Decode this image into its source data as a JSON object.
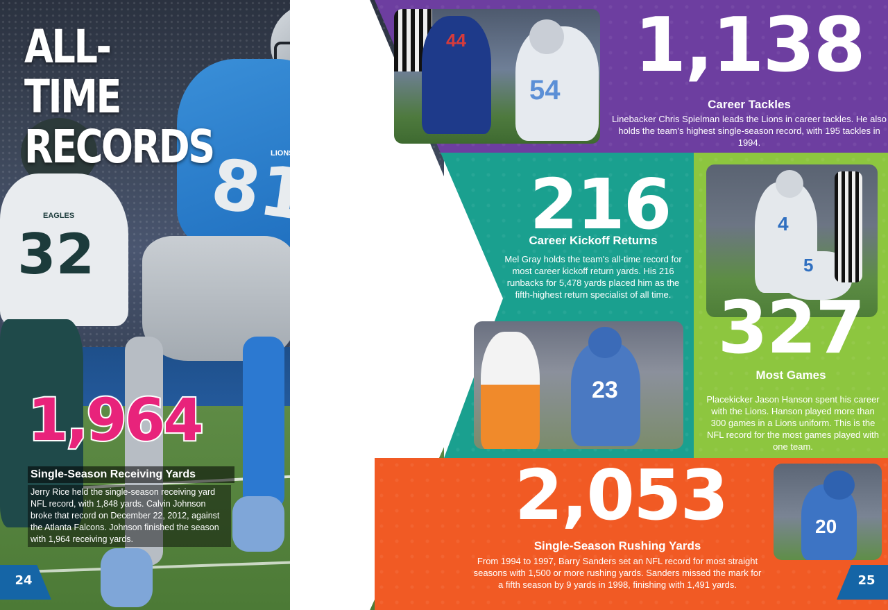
{
  "left_page": {
    "title_line1": "ALL-TIME",
    "title_line2": "RECORDS",
    "jersey_number": "81",
    "opponent_number": "32",
    "jersey_team_text": "LIONS",
    "opponent_team_text": "EAGLES",
    "stat": {
      "number": "1,964",
      "label": "Single-Season Receiving Yards",
      "body": "Jerry Rice held the single-season receiving yard NFL record, with 1,848 yards. Calvin Johnson broke that record on December 22, 2012, against the Atlanta Falcons. Johnson finished the season with 1,964 receiving yards."
    },
    "page_number": "24"
  },
  "right_page": {
    "tackles": {
      "number": "1,138",
      "label": "Career Tackles",
      "body": "Linebacker Chris Spielman leads the Lions in career tackles. He also holds the team's highest single-season record, with 195 tackles in 1994.",
      "photo_numbers": [
        "44",
        "54"
      ]
    },
    "kickoff": {
      "number": "216",
      "label": "Career Kickoff Returns",
      "body": "Mel Gray holds the team's all-time record for most career kickoff return yards. His 216 runbacks for 5,478 yards placed him as the fifth-highest return specialist of all time.",
      "photo_numbers": [
        "23"
      ]
    },
    "games": {
      "number": "327",
      "label": "Most Games",
      "body": "Placekicker Jason Hanson spent his career with the Lions. Hanson played more than 300 games in a Lions uniform. This is the NFL record for the most games played with one team.",
      "photo_numbers": [
        "4",
        "5"
      ]
    },
    "rushing": {
      "number": "2,053",
      "label": "Single-Season Rushing Yards",
      "body": "From 1994 to 1997, Barry Sanders set an NFL record for most straight seasons with 1,500 or more rushing yards. Sanders missed the mark for a fifth season by 9 yards in 1998, finishing with 1,491 yards.",
      "photo_numbers": [
        "20"
      ]
    },
    "page_number": "25"
  },
  "colors": {
    "purple": "#6d3ea0",
    "teal": "#1aa08f",
    "green": "#8dc63f",
    "orange": "#f15a24",
    "pink": "#e8237b",
    "page_tab_blue": "#1565a6"
  }
}
